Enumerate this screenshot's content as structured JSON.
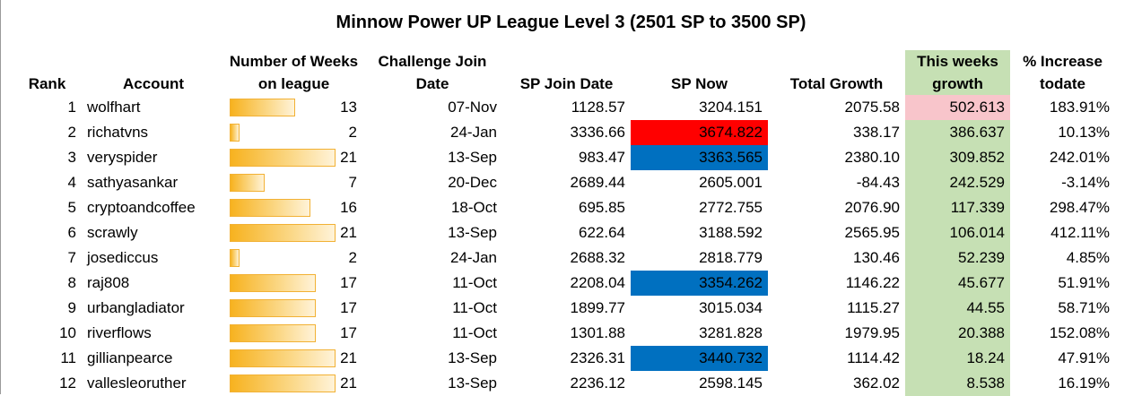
{
  "title": "Minnow Power UP League Level 3 (2501 SP to 3500 SP)",
  "headers": {
    "rank": "Rank",
    "account": "Account",
    "weeks_line1": "Number of Weeks",
    "weeks_line2": "on league",
    "join_line1": "Challenge Join",
    "join_line2": "Date",
    "sp_join": "SP Join Date",
    "sp_now": "SP Now",
    "total_growth": "Total Growth",
    "week_growth_line1": "This weeks",
    "week_growth_line2": "growth",
    "pct_line1": "% Increase",
    "pct_line2": "todate"
  },
  "weeks_max": 21,
  "colors": {
    "green_column": "#c6e0b4",
    "red_highlight": "#ff0000",
    "blue_highlight": "#0070c0",
    "pink_highlight": "#f8c5cb",
    "bar_fill": "#f7b21f"
  },
  "rows": [
    {
      "rank": "1",
      "account": "wolfhart",
      "weeks": 13,
      "join": "07-Nov",
      "sp_join": "1128.57",
      "sp_now": "3204.151",
      "total": "2075.58",
      "growth": "502.613",
      "pct": "183.91%",
      "sp_now_hl": "",
      "growth_hl": "pink"
    },
    {
      "rank": "2",
      "account": "richatvns",
      "weeks": 2,
      "join": "24-Jan",
      "sp_join": "3336.66",
      "sp_now": "3674.822",
      "total": "338.17",
      "growth": "386.637",
      "pct": "10.13%",
      "sp_now_hl": "red",
      "growth_hl": ""
    },
    {
      "rank": "3",
      "account": "veryspider",
      "weeks": 21,
      "join": "13-Sep",
      "sp_join": "983.47",
      "sp_now": "3363.565",
      "total": "2380.10",
      "growth": "309.852",
      "pct": "242.01%",
      "sp_now_hl": "blue",
      "growth_hl": ""
    },
    {
      "rank": "4",
      "account": "sathyasankar",
      "weeks": 7,
      "join": "20-Dec",
      "sp_join": "2689.44",
      "sp_now": "2605.001",
      "total": "-84.43",
      "growth": "242.529",
      "pct": "-3.14%",
      "sp_now_hl": "",
      "growth_hl": ""
    },
    {
      "rank": "5",
      "account": "cryptoandcoffee",
      "weeks": 16,
      "join": "18-Oct",
      "sp_join": "695.85",
      "sp_now": "2772.755",
      "total": "2076.90",
      "growth": "117.339",
      "pct": "298.47%",
      "sp_now_hl": "",
      "growth_hl": ""
    },
    {
      "rank": "6",
      "account": "scrawly",
      "weeks": 21,
      "join": "13-Sep",
      "sp_join": "622.64",
      "sp_now": "3188.592",
      "total": "2565.95",
      "growth": "106.014",
      "pct": "412.11%",
      "sp_now_hl": "",
      "growth_hl": ""
    },
    {
      "rank": "7",
      "account": "josediccus",
      "weeks": 2,
      "join": "24-Jan",
      "sp_join": "2688.32",
      "sp_now": "2818.779",
      "total": "130.46",
      "growth": "52.239",
      "pct": "4.85%",
      "sp_now_hl": "",
      "growth_hl": ""
    },
    {
      "rank": "8",
      "account": "raj808",
      "weeks": 17,
      "join": "11-Oct",
      "sp_join": "2208.04",
      "sp_now": "3354.262",
      "total": "1146.22",
      "growth": "45.677",
      "pct": "51.91%",
      "sp_now_hl": "blue",
      "growth_hl": ""
    },
    {
      "rank": "9",
      "account": "urbangladiator",
      "weeks": 17,
      "join": "11-Oct",
      "sp_join": "1899.77",
      "sp_now": "3015.034",
      "total": "1115.27",
      "growth": "44.55",
      "pct": "58.71%",
      "sp_now_hl": "",
      "growth_hl": ""
    },
    {
      "rank": "10",
      "account": "riverflows",
      "weeks": 17,
      "join": "11-Oct",
      "sp_join": "1301.88",
      "sp_now": "3281.828",
      "total": "1979.95",
      "growth": "20.388",
      "pct": "152.08%",
      "sp_now_hl": "",
      "growth_hl": ""
    },
    {
      "rank": "11",
      "account": "gillianpearce",
      "weeks": 21,
      "join": "13-Sep",
      "sp_join": "2326.31",
      "sp_now": "3440.732",
      "total": "1114.42",
      "growth": "18.24",
      "pct": "47.91%",
      "sp_now_hl": "blue",
      "growth_hl": ""
    },
    {
      "rank": "12",
      "account": "vallesleoruther",
      "weeks": 21,
      "join": "13-Sep",
      "sp_join": "2236.12",
      "sp_now": "2598.145",
      "total": "362.02",
      "growth": "8.538",
      "pct": "16.19%",
      "sp_now_hl": "",
      "growth_hl": ""
    }
  ]
}
